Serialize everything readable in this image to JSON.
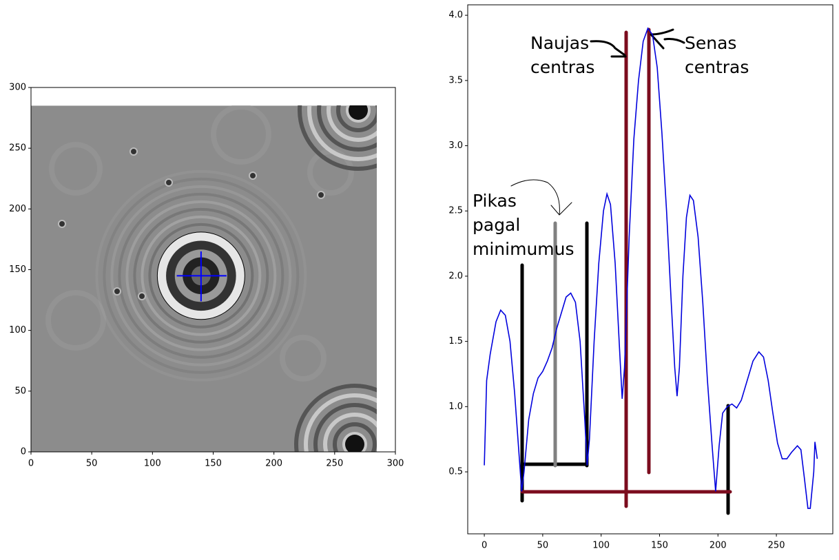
{
  "chart_data": [
    {
      "type": "image",
      "xlim": [
        0,
        300
      ],
      "ylim": [
        0,
        300
      ],
      "xticks": [
        0,
        50,
        100,
        150,
        200,
        250,
        300
      ],
      "yticks": [
        0,
        50,
        100,
        150,
        200,
        250,
        300
      ],
      "image_extent": [
        0,
        285,
        0,
        285
      ],
      "circle": {
        "x": 140,
        "y": 145,
        "r": 36
      },
      "cross": {
        "x": [
          120,
          161
        ],
        "y": [
          124,
          165
        ]
      },
      "color": "#0000ff"
    },
    {
      "type": "line",
      "xlim": [
        -14.2,
        298.3
      ],
      "ylim": [
        0.025,
        4.08
      ],
      "xticks": [
        0,
        50,
        100,
        150,
        200,
        250
      ],
      "yticks": [
        {
          "value": 0.5,
          "label": "0.5"
        },
        {
          "value": 1.0,
          "label": "1.0"
        },
        {
          "value": 1.5,
          "label": "1.5"
        },
        {
          "value": 2.0,
          "label": "2.0"
        },
        {
          "value": 2.5,
          "label": "2.5"
        },
        {
          "value": 3.0,
          "label": "3.0"
        },
        {
          "value": 3.5,
          "label": "3.5"
        },
        {
          "value": 4.0,
          "label": "4.0"
        }
      ],
      "series": [
        {
          "color": "#0000dd",
          "x": [
            0,
            2,
            5,
            10,
            14,
            18,
            22,
            26,
            30,
            32,
            34,
            38,
            42,
            46,
            50,
            54,
            58,
            62,
            66,
            70,
            74,
            78,
            82,
            86,
            88,
            90,
            94,
            98,
            102,
            105,
            108,
            112,
            116,
            118,
            120,
            124,
            128,
            132,
            136,
            140,
            144,
            148,
            152,
            156,
            160,
            163,
            165,
            167,
            170,
            173,
            176,
            179,
            183,
            187,
            191,
            195,
            198,
            201,
            204,
            208,
            212,
            216,
            220,
            225,
            230,
            235,
            239,
            243,
            247,
            251,
            255,
            259,
            263,
            268,
            271,
            274,
            277,
            279,
            282,
            283,
            285
          ],
          "values": [
            0.55,
            1.2,
            1.4,
            1.65,
            1.74,
            1.7,
            1.5,
            1.1,
            0.6,
            0.35,
            0.5,
            0.9,
            1.1,
            1.22,
            1.27,
            1.35,
            1.45,
            1.6,
            1.72,
            1.84,
            1.87,
            1.8,
            1.5,
            0.9,
            0.55,
            0.75,
            1.5,
            2.1,
            2.5,
            2.63,
            2.55,
            2.1,
            1.4,
            1.06,
            1.3,
            2.3,
            3.05,
            3.5,
            3.8,
            3.9,
            3.85,
            3.6,
            3.1,
            2.5,
            1.8,
            1.3,
            1.08,
            1.3,
            2.0,
            2.45,
            2.62,
            2.58,
            2.3,
            1.8,
            1.2,
            0.7,
            0.35,
            0.7,
            0.95,
            1.0,
            1.02,
            0.99,
            1.05,
            1.2,
            1.35,
            1.42,
            1.38,
            1.2,
            0.95,
            0.72,
            0.6,
            0.6,
            0.65,
            0.7,
            0.67,
            0.45,
            0.22,
            0.22,
            0.5,
            0.73,
            0.6
          ]
        }
      ],
      "annotations": [
        [
          "Naujas",
          "centras"
        ],
        [
          "Senas",
          "centras"
        ],
        [
          "Pikas",
          "pagal",
          "minimumus"
        ]
      ]
    }
  ]
}
